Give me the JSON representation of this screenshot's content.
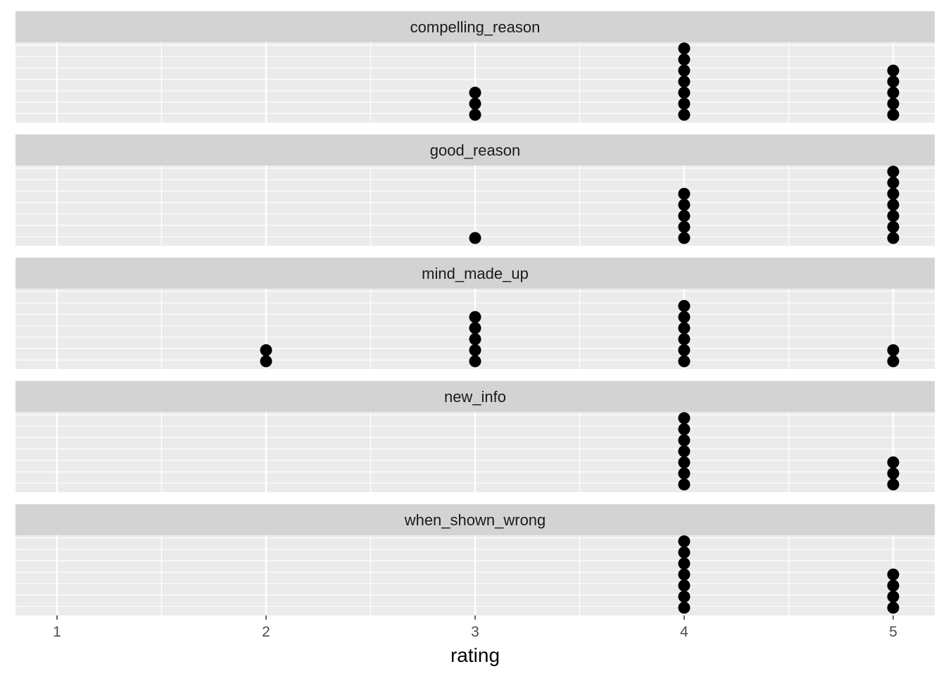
{
  "chart_data": {
    "type": "scatter",
    "subtype": "faceted-dotplot",
    "title": "",
    "xlabel": "rating",
    "ylabel": "",
    "xlim": [
      0.8,
      5.2
    ],
    "x_ticks": [
      1,
      2,
      3,
      4,
      5
    ],
    "grid": true,
    "legend": "none",
    "colors": {
      "panel_bg": "#ebebeb",
      "grid": "#ffffff",
      "strip_bg": "#d3d3d3",
      "dot": "#000000"
    },
    "facets": [
      {
        "name": "compelling_reason",
        "counts": {
          "1": 0,
          "2": 0,
          "3": 3,
          "4": 7,
          "5": 5
        }
      },
      {
        "name": "good_reason",
        "counts": {
          "1": 0,
          "2": 0,
          "3": 1,
          "4": 5,
          "5": 7
        }
      },
      {
        "name": "mind_made_up",
        "counts": {
          "1": 0,
          "2": 2,
          "3": 5,
          "4": 6,
          "5": 2
        }
      },
      {
        "name": "new_info",
        "counts": {
          "1": 0,
          "2": 0,
          "3": 0,
          "4": 7,
          "5": 3
        }
      },
      {
        "name": "when_shown_wrong",
        "counts": {
          "1": 0,
          "2": 0,
          "3": 0,
          "4": 7,
          "5": 4
        }
      }
    ]
  }
}
